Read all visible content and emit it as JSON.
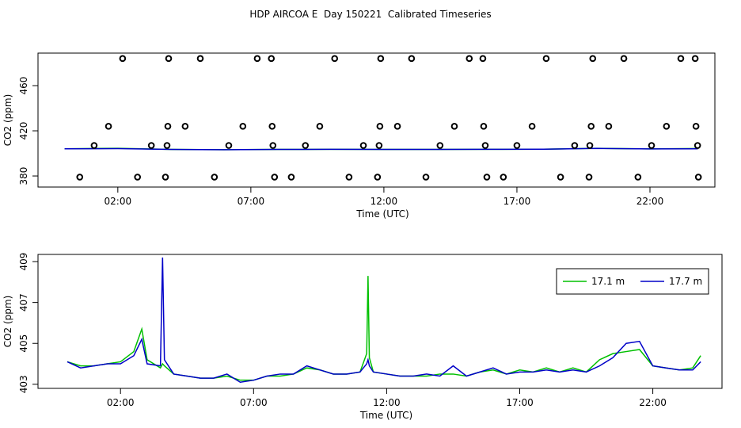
{
  "chart_data": [
    {
      "type": "line",
      "title": "HDP AIRCOA E  Day 150221  Calibrated Timeseries",
      "x_label": "Time (UTC)",
      "y_label": "CO2 (ppm)",
      "xlim": [
        -1.0,
        24.44
      ],
      "ylim": [
        370.2,
        488.8
      ],
      "xticks": [
        {
          "value": 2,
          "label": "02:00"
        },
        {
          "value": 7,
          "label": "07:00"
        },
        {
          "value": 12,
          "label": "12:00"
        },
        {
          "value": 17,
          "label": "17:00"
        },
        {
          "value": 22,
          "label": "22:00"
        }
      ],
      "yticks": [
        380,
        420,
        460
      ],
      "x": [
        0,
        2,
        4,
        6,
        8,
        10,
        12,
        14,
        16,
        18,
        20,
        22,
        23.8
      ],
      "series": [
        {
          "color": "#00c000",
          "values": [
            404.1,
            404.5,
            403.5,
            403.3,
            403.5,
            403.6,
            403.5,
            403.5,
            403.6,
            403.7,
            404.5,
            404.0,
            404.3
          ]
        },
        {
          "color": "#0000c8",
          "values": [
            404.1,
            404.2,
            403.5,
            403.3,
            403.5,
            403.6,
            403.5,
            403.5,
            403.6,
            403.7,
            404.4,
            404.0,
            404.1
          ]
        }
      ],
      "points": {
        "color": "#000000",
        "x": [
          0.57,
          1.11,
          1.65,
          2.18,
          2.74,
          3.26,
          3.79,
          3.85,
          3.88,
          3.91,
          4.53,
          5.1,
          5.63,
          6.17,
          6.7,
          7.24,
          7.77,
          7.8,
          7.83,
          7.89,
          8.52,
          9.05,
          9.59,
          10.15,
          10.69,
          11.23,
          11.76,
          11.82,
          11.85,
          11.88,
          12.51,
          13.04,
          13.58,
          14.11,
          14.65,
          15.21,
          15.72,
          15.75,
          15.81,
          15.87,
          16.49,
          17.0,
          17.57,
          18.1,
          18.64,
          19.17,
          19.71,
          19.74,
          19.79,
          19.85,
          20.45,
          21.02,
          21.55,
          22.06,
          22.62,
          23.16,
          23.7,
          23.73,
          23.79,
          23.82
        ],
        "y": [
          379,
          407,
          424,
          484,
          379,
          407,
          379,
          407,
          424,
          484,
          424,
          484,
          379,
          407,
          424,
          484,
          484,
          424,
          407,
          379,
          379,
          407,
          424,
          484,
          379,
          407,
          379,
          407,
          424,
          484,
          424,
          484,
          379,
          407,
          424,
          484,
          484,
          424,
          407,
          379,
          379,
          407,
          424,
          484,
          379,
          407,
          379,
          407,
          424,
          484,
          424,
          484,
          379,
          407,
          424,
          484,
          484,
          424,
          407,
          379
        ]
      }
    },
    {
      "type": "line",
      "x_label": "Time (UTC)",
      "y_label": "CO2 (ppm)",
      "xlim": [
        -1.1,
        24.6
      ],
      "ylim": [
        402.8,
        409.35
      ],
      "xticks": [
        {
          "value": 2,
          "label": "02:00"
        },
        {
          "value": 7,
          "label": "07:00"
        },
        {
          "value": 12,
          "label": "12:00"
        },
        {
          "value": 17,
          "label": "17:00"
        },
        {
          "value": 22,
          "label": "22:00"
        }
      ],
      "yticks": [
        403,
        405,
        407,
        409
      ],
      "legend": "top-right",
      "x": [
        0,
        0.5,
        1,
        1.5,
        2,
        2.5,
        2.8,
        3,
        3.5,
        3.58,
        3.65,
        4,
        4.5,
        5,
        5.5,
        6,
        6.5,
        7,
        7.5,
        8,
        8.5,
        9,
        9.5,
        10,
        10.5,
        11,
        11.25,
        11.3,
        11.35,
        11.5,
        12,
        12.5,
        13,
        13.5,
        14,
        14.5,
        15,
        15.5,
        16,
        16.5,
        17,
        17.5,
        18,
        18.5,
        19,
        19.5,
        20,
        20.5,
        21,
        21.5,
        22,
        22.5,
        23,
        23.5,
        23.8
      ],
      "series": [
        {
          "name": "17.1 m",
          "color": "#00c000",
          "values": [
            404.1,
            403.9,
            403.9,
            404.0,
            404.1,
            404.6,
            405.7,
            404.2,
            403.8,
            404.0,
            403.9,
            403.5,
            403.4,
            403.3,
            403.3,
            403.4,
            403.2,
            403.2,
            403.4,
            403.4,
            403.5,
            403.8,
            403.7,
            403.5,
            403.5,
            403.6,
            404.5,
            408.3,
            404.3,
            403.6,
            403.5,
            403.4,
            403.4,
            403.4,
            403.5,
            403.5,
            403.4,
            403.6,
            403.7,
            403.5,
            403.7,
            403.6,
            403.8,
            403.6,
            403.8,
            403.6,
            404.2,
            404.5,
            404.6,
            404.7,
            403.9,
            403.8,
            403.7,
            403.8,
            404.4
          ]
        },
        {
          "name": "17.7 m",
          "color": "#0000c8",
          "values": [
            404.1,
            403.8,
            403.9,
            404.0,
            404.0,
            404.4,
            405.2,
            404.0,
            403.9,
            409.2,
            404.2,
            403.5,
            403.4,
            403.3,
            403.3,
            403.5,
            403.1,
            403.2,
            403.4,
            403.5,
            403.5,
            403.9,
            403.7,
            403.5,
            403.5,
            403.6,
            404.0,
            404.2,
            403.9,
            403.6,
            403.5,
            403.4,
            403.4,
            403.5,
            403.4,
            403.9,
            403.4,
            403.6,
            403.8,
            403.5,
            403.6,
            403.6,
            403.7,
            403.6,
            403.7,
            403.6,
            403.9,
            404.3,
            405.0,
            405.1,
            403.9,
            403.8,
            403.7,
            403.7,
            404.1
          ]
        }
      ]
    }
  ]
}
